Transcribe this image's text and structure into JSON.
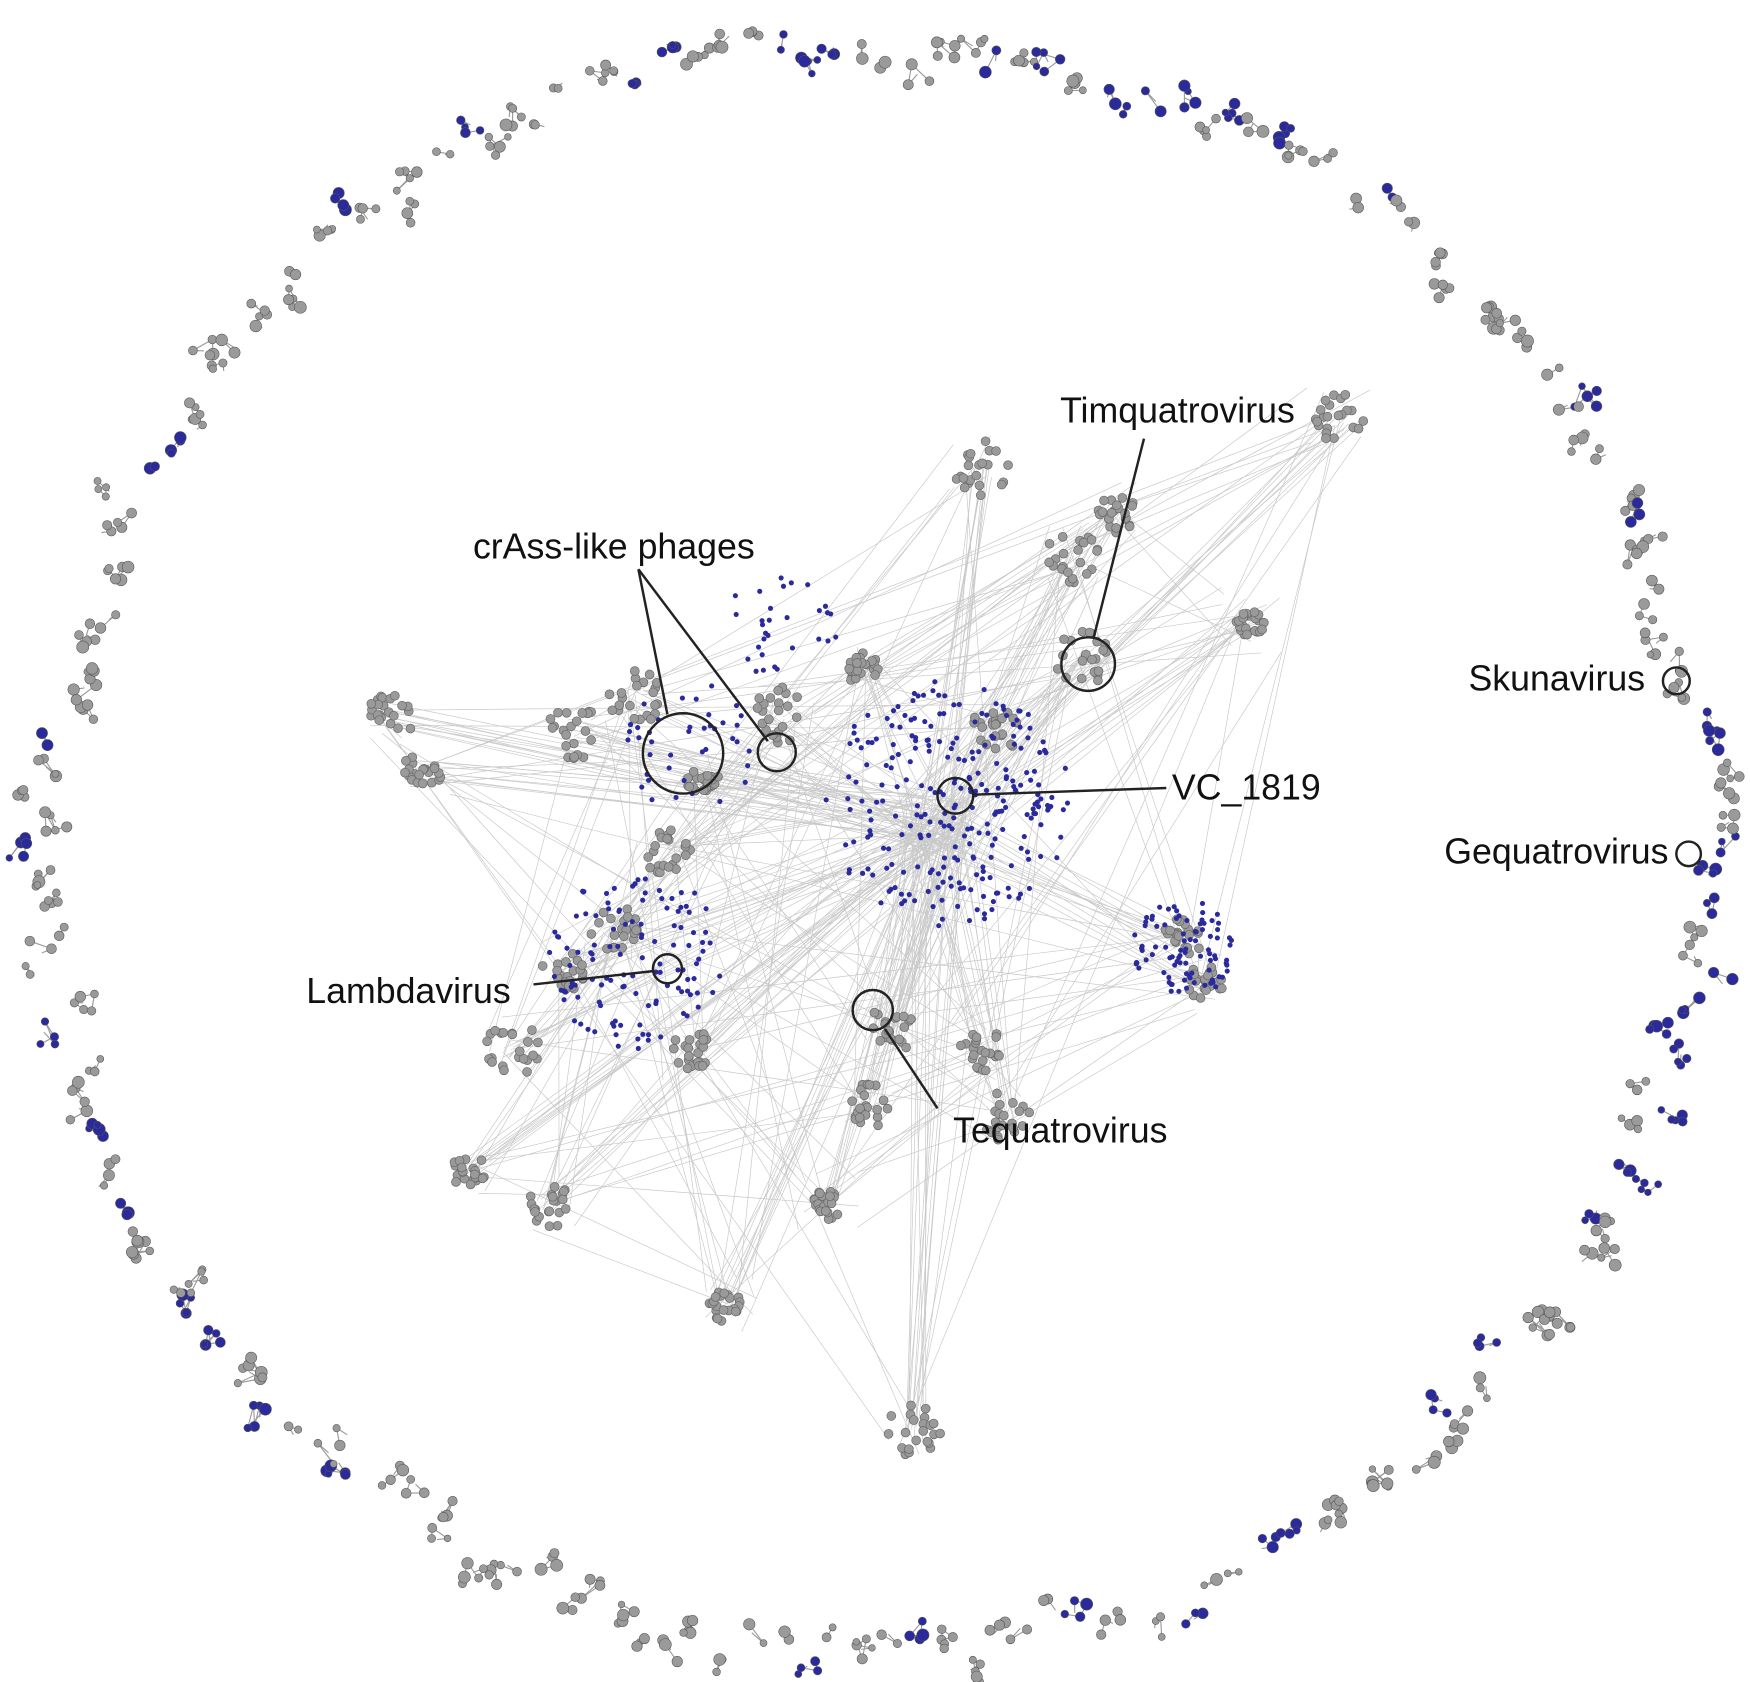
{
  "annotations": {
    "crass": "crAss-like phages",
    "timquatrovirus": "Timquatrovirus",
    "vc1819": "VC_1819",
    "skunavirus": "Skunavirus",
    "gequatrovirus": "Gequatrovirus",
    "lambdavirus": "Lambdavirus",
    "tequatrovirus": "Tequatrovirus"
  }
}
